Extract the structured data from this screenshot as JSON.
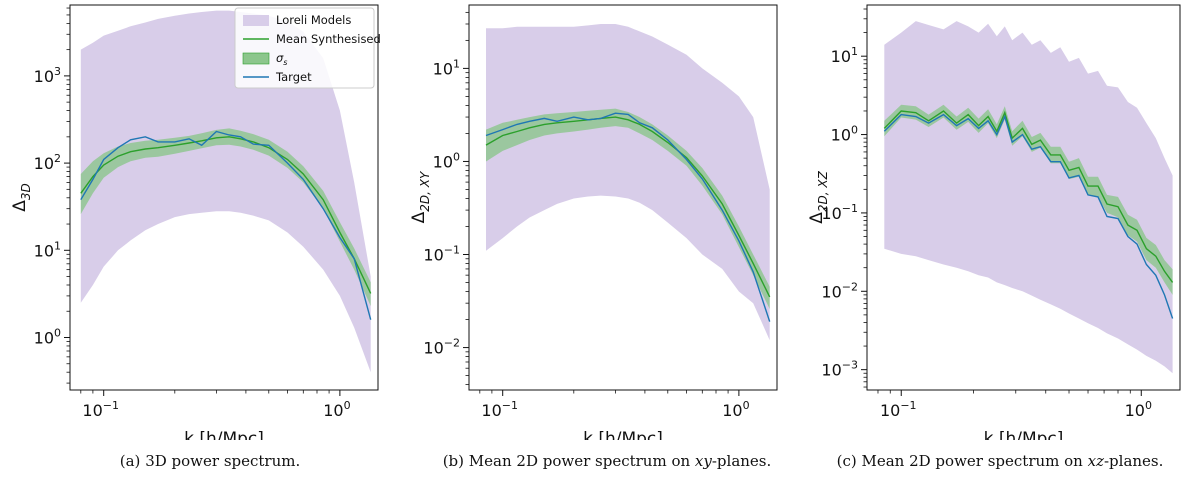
{
  "figure": {
    "captions": [
      {
        "label": "(a)",
        "text": "3D power spectrum."
      },
      {
        "label": "(b)",
        "text_before": "Mean 2D power spectrum on ",
        "italic": "xy",
        "text_after": "-planes."
      },
      {
        "label": "(c)",
        "text_before": "Mean 2D power spectrum on ",
        "italic": "xz",
        "text_after": "-planes."
      }
    ]
  },
  "colors": {
    "models_fill": "#d8cde9",
    "sigma_fill": "#8cc68c",
    "mean_line": "#2ca02c",
    "target_line": "#1f77b4"
  },
  "chart_data": [
    {
      "type": "line",
      "title": "",
      "xlabel": "k [h/Mpc]",
      "ylabel_main": "Δ",
      "ylabel_sub": "3D",
      "xscale": "log",
      "yscale": "log",
      "xlim": [
        0.072,
        1.45
      ],
      "ylim": [
        0.25,
        6500
      ],
      "xticks": [
        {
          "value": 0.1,
          "base": "10",
          "exp": "−1"
        },
        {
          "value": 1,
          "base": "10",
          "exp": "0"
        }
      ],
      "yticks": [
        {
          "value": 1,
          "base": "10",
          "exp": "0"
        },
        {
          "value": 10,
          "base": "10",
          "exp": "1"
        },
        {
          "value": 100,
          "base": "10",
          "exp": "2"
        },
        {
          "value": 1000,
          "base": "10",
          "exp": "3"
        }
      ],
      "legend": {
        "position": "top-right",
        "entries": [
          {
            "label": "Loreli Models",
            "kind": "models"
          },
          {
            "label": "Mean Synthesised",
            "kind": "mean"
          },
          {
            "label": "σ",
            "sub": "s",
            "kind": "sigma"
          },
          {
            "label": "Target",
            "kind": "target"
          }
        ]
      },
      "x": [
        0.08,
        0.09,
        0.1,
        0.115,
        0.13,
        0.15,
        0.17,
        0.2,
        0.23,
        0.26,
        0.3,
        0.34,
        0.38,
        0.43,
        0.5,
        0.6,
        0.7,
        0.85,
        1.0,
        1.15,
        1.35
      ],
      "series": [
        {
          "name": "Loreli Models upper",
          "values": [
            2000,
            2400,
            2900,
            3300,
            3700,
            4100,
            4500,
            4900,
            5200,
            5400,
            5600,
            5600,
            5400,
            5200,
            4900,
            4200,
            3200,
            1600,
            400,
            60,
            5
          ]
        },
        {
          "name": "Loreli Models lower",
          "values": [
            2.5,
            4.0,
            6.5,
            10,
            13,
            17,
            20,
            24,
            26,
            27,
            28,
            28,
            27,
            25,
            22,
            16,
            11,
            6,
            3,
            1.3,
            0.4
          ]
        },
        {
          "name": "Mean Synthesised",
          "values": [
            45,
            70,
            95,
            120,
            135,
            145,
            150,
            160,
            170,
            180,
            195,
            200,
            190,
            175,
            150,
            110,
            75,
            38,
            16,
            8,
            3.2
          ]
        },
        {
          "name": "σs upper",
          "values": [
            75,
            105,
            130,
            155,
            170,
            180,
            185,
            195,
            205,
            220,
            240,
            250,
            235,
            215,
            185,
            135,
            92,
            48,
            21,
            10.5,
            4.3
          ]
        },
        {
          "name": "σs lower",
          "values": [
            26,
            45,
            68,
            90,
            105,
            115,
            118,
            128,
            138,
            148,
            160,
            162,
            155,
            142,
            122,
            88,
            60,
            30,
            12.5,
            6.0,
            2.3
          ]
        },
        {
          "name": "Target",
          "values": [
            38,
            65,
            110,
            150,
            185,
            200,
            175,
            175,
            190,
            160,
            230,
            210,
            200,
            165,
            160,
            100,
            65,
            30,
            14,
            8,
            1.6
          ]
        }
      ]
    },
    {
      "type": "line",
      "title": "",
      "xlabel": "k [h/Mpc]",
      "ylabel_main": "Δ",
      "ylabel_sub": "2D, XY",
      "xscale": "log",
      "yscale": "log",
      "xlim": [
        0.072,
        1.45
      ],
      "ylim": [
        0.0035,
        48
      ],
      "xticks": [
        {
          "value": 0.1,
          "base": "10",
          "exp": "−1"
        },
        {
          "value": 1,
          "base": "10",
          "exp": "0"
        }
      ],
      "yticks": [
        {
          "value": 0.01,
          "base": "10",
          "exp": "−2"
        },
        {
          "value": 0.1,
          "base": "10",
          "exp": "−1"
        },
        {
          "value": 1,
          "base": "10",
          "exp": "0"
        },
        {
          "value": 10,
          "base": "10",
          "exp": "1"
        }
      ],
      "x": [
        0.085,
        0.1,
        0.115,
        0.13,
        0.15,
        0.17,
        0.2,
        0.23,
        0.26,
        0.3,
        0.34,
        0.38,
        0.43,
        0.5,
        0.6,
        0.7,
        0.85,
        1.0,
        1.15,
        1.35
      ],
      "series": [
        {
          "name": "Loreli Models upper",
          "values": [
            27,
            27,
            28,
            28,
            28,
            28,
            28,
            29,
            30,
            30,
            28,
            25,
            22,
            18,
            14,
            10,
            7,
            5,
            3,
            0.5
          ]
        },
        {
          "name": "Loreli Models lower",
          "values": [
            0.11,
            0.15,
            0.2,
            0.25,
            0.3,
            0.35,
            0.4,
            0.42,
            0.43,
            0.42,
            0.4,
            0.36,
            0.3,
            0.22,
            0.15,
            0.1,
            0.07,
            0.04,
            0.03,
            0.012
          ]
        },
        {
          "name": "Mean Synthesised",
          "values": [
            1.5,
            1.9,
            2.1,
            2.3,
            2.5,
            2.6,
            2.7,
            2.8,
            2.9,
            3.0,
            2.8,
            2.5,
            2.1,
            1.6,
            1.1,
            0.7,
            0.35,
            0.16,
            0.08,
            0.035
          ]
        },
        {
          "name": "σs upper",
          "values": [
            2.2,
            2.6,
            2.8,
            3.0,
            3.2,
            3.3,
            3.4,
            3.5,
            3.6,
            3.7,
            3.4,
            3.0,
            2.5,
            1.9,
            1.3,
            0.85,
            0.43,
            0.2,
            0.1,
            0.045
          ]
        },
        {
          "name": "σs lower",
          "values": [
            1.0,
            1.3,
            1.5,
            1.7,
            1.9,
            2.0,
            2.1,
            2.2,
            2.3,
            2.4,
            2.3,
            2.0,
            1.7,
            1.3,
            0.9,
            0.55,
            0.27,
            0.12,
            0.06,
            0.026
          ]
        },
        {
          "name": "Target",
          "values": [
            1.9,
            2.2,
            2.5,
            2.7,
            2.9,
            2.7,
            3.0,
            2.8,
            2.9,
            3.3,
            3.2,
            2.6,
            2.3,
            1.7,
            1.05,
            0.65,
            0.3,
            0.14,
            0.065,
            0.019
          ]
        }
      ]
    },
    {
      "type": "line",
      "title": "",
      "xlabel": "k [h/Mpc]",
      "ylabel_main": "Δ",
      "ylabel_sub": "2D, XZ",
      "xscale": "log",
      "yscale": "log",
      "xlim": [
        0.072,
        1.45
      ],
      "ylim": [
        0.00055,
        45
      ],
      "xticks": [
        {
          "value": 0.1,
          "base": "10",
          "exp": "−1"
        },
        {
          "value": 1,
          "base": "10",
          "exp": "0"
        }
      ],
      "yticks": [
        {
          "value": 0.001,
          "base": "10",
          "exp": "−3"
        },
        {
          "value": 0.01,
          "base": "10",
          "exp": "−2"
        },
        {
          "value": 0.1,
          "base": "10",
          "exp": "−1"
        },
        {
          "value": 1,
          "base": "10",
          "exp": "0"
        },
        {
          "value": 10,
          "base": "10",
          "exp": "1"
        }
      ],
      "x": [
        0.085,
        0.1,
        0.115,
        0.13,
        0.15,
        0.17,
        0.19,
        0.21,
        0.23,
        0.25,
        0.27,
        0.29,
        0.32,
        0.35,
        0.38,
        0.42,
        0.46,
        0.5,
        0.55,
        0.6,
        0.66,
        0.72,
        0.8,
        0.88,
        0.96,
        1.05,
        1.15,
        1.25,
        1.35
      ],
      "series": [
        {
          "name": "Loreli Models upper",
          "values": [
            14,
            20,
            28,
            25,
            22,
            28,
            24,
            20,
            26,
            18,
            24,
            16,
            20,
            14,
            16,
            11,
            13,
            8.5,
            9.5,
            6,
            6.5,
            4.2,
            4,
            2.6,
            2.2,
            1.4,
            0.9,
            0.5,
            0.3
          ]
        },
        {
          "name": "Loreli Models lower",
          "values": [
            0.035,
            0.03,
            0.028,
            0.025,
            0.022,
            0.02,
            0.018,
            0.016,
            0.015,
            0.013,
            0.012,
            0.011,
            0.01,
            0.0088,
            0.0078,
            0.0068,
            0.006,
            0.0052,
            0.0045,
            0.0039,
            0.0034,
            0.0029,
            0.0025,
            0.0021,
            0.0018,
            0.0015,
            0.0013,
            0.0011,
            0.0009
          ]
        },
        {
          "name": "Mean Synthesised",
          "values": [
            1.2,
            2.0,
            1.9,
            1.5,
            2.0,
            1.4,
            1.8,
            1.3,
            1.7,
            1.1,
            1.9,
            0.9,
            1.2,
            0.75,
            0.85,
            0.55,
            0.55,
            0.35,
            0.38,
            0.22,
            0.22,
            0.13,
            0.12,
            0.07,
            0.06,
            0.035,
            0.028,
            0.018,
            0.013
          ]
        },
        {
          "name": "σs upper",
          "values": [
            1.5,
            2.4,
            2.3,
            1.8,
            2.4,
            1.7,
            2.2,
            1.6,
            2.1,
            1.35,
            2.3,
            1.1,
            1.5,
            0.93,
            1.05,
            0.7,
            0.7,
            0.45,
            0.5,
            0.29,
            0.29,
            0.17,
            0.16,
            0.095,
            0.082,
            0.048,
            0.039,
            0.025,
            0.019
          ]
        },
        {
          "name": "σs lower",
          "values": [
            0.95,
            1.65,
            1.55,
            1.25,
            1.65,
            1.15,
            1.45,
            1.05,
            1.4,
            0.9,
            1.55,
            0.72,
            0.95,
            0.6,
            0.68,
            0.43,
            0.43,
            0.27,
            0.29,
            0.17,
            0.16,
            0.1,
            0.088,
            0.052,
            0.043,
            0.025,
            0.02,
            0.013,
            0.009
          ]
        },
        {
          "name": "Target",
          "values": [
            1.1,
            1.8,
            1.7,
            1.4,
            1.8,
            1.3,
            1.6,
            1.2,
            1.5,
            1.0,
            1.7,
            0.8,
            1.0,
            0.65,
            0.7,
            0.45,
            0.45,
            0.28,
            0.3,
            0.17,
            0.16,
            0.09,
            0.085,
            0.05,
            0.04,
            0.022,
            0.016,
            0.009,
            0.0045
          ]
        }
      ]
    }
  ]
}
